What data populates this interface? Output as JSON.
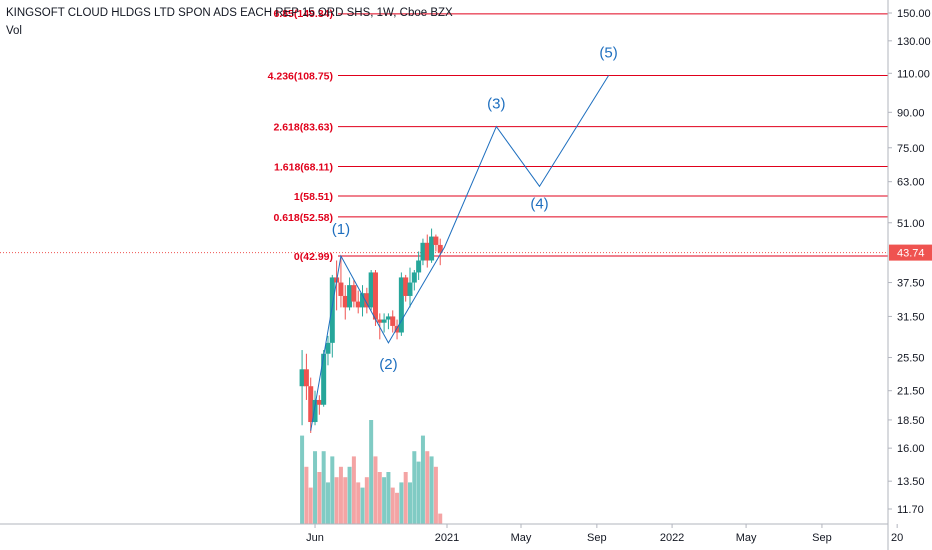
{
  "header": {
    "title": "KINGSOFT CLOUD HLDGS LTD SPON ADS EACH REP 15 ORD SHS, 1W, Cboe BZX",
    "volume_label": "Vol"
  },
  "colors": {
    "up": "#26a69a",
    "down": "#ef5350",
    "vol_up": "#80cbc4",
    "vol_down": "#f4a4a4",
    "fib": "#e0001b",
    "wave": "#1e6fbf",
    "price_tag": "#ef5350"
  },
  "chart_data": {
    "type": "candlestick",
    "y_scale": "log",
    "y_ticks": [
      "150.00",
      "130.00",
      "110.00",
      "90.00",
      "75.00",
      "63.00",
      "51.00",
      "37.50",
      "31.50",
      "25.50",
      "21.50",
      "18.50",
      "16.00",
      "13.50",
      "11.70"
    ],
    "x_ticks": [
      "Jun",
      "2021",
      "May",
      "Sep",
      "2022",
      "May",
      "Sep",
      "20"
    ],
    "x_tick_dates": [
      "2020-06-01",
      "2021-01-01",
      "2021-05-01",
      "2021-09-01",
      "2022-01-01",
      "2022-05-01",
      "2022-09-01",
      "2023-01-01"
    ],
    "current_price": "43.74",
    "fib_levels": [
      {
        "label": "4.236(108.75)",
        "price": 108.75
      },
      {
        "label": "2.618(83.63)",
        "price": 83.63
      },
      {
        "label": "1.618(68.11)",
        "price": 68.11
      },
      {
        "label": "1(58.51)",
        "price": 58.51
      },
      {
        "label": "0.618(52.58)",
        "price": 52.58
      },
      {
        "label": "0(42.99)",
        "price": 42.99
      }
    ],
    "top_line": {
      "label": "6.85(149.34)",
      "price": 149.34
    },
    "elliott_waves": [
      {
        "label": "(1)",
        "date": "2020-07-13",
        "price": 42.99
      },
      {
        "label": "(2)",
        "date": "2020-09-28",
        "price": 27.5
      },
      {
        "label": "(3)",
        "date": "2021-03-22",
        "price": 83.63
      },
      {
        "label": "(4)",
        "date": "2021-05-31",
        "price": 61.5
      },
      {
        "label": "(5)",
        "date": "2021-09-20",
        "price": 108.75
      }
    ],
    "wave_path": [
      {
        "date": "2020-05-25",
        "price": 17.5
      },
      {
        "date": "2020-07-13",
        "price": 42.99
      },
      {
        "date": "2020-09-28",
        "price": 27.5
      },
      {
        "date": "2020-12-28",
        "price": 45.0
      },
      {
        "date": "2021-03-22",
        "price": 83.63
      },
      {
        "date": "2021-05-31",
        "price": 61.5
      },
      {
        "date": "2021-09-20",
        "price": 108.75
      }
    ],
    "candles": [
      {
        "date": "2020-05-11",
        "o": 22.0,
        "h": 26.5,
        "l": 18.0,
        "c": 24.0
      },
      {
        "date": "2020-05-18",
        "o": 24.0,
        "h": 26.0,
        "l": 20.5,
        "c": 22.0
      },
      {
        "date": "2020-05-25",
        "o": 22.0,
        "h": 23.0,
        "l": 17.3,
        "c": 18.3
      },
      {
        "date": "2020-06-01",
        "o": 18.3,
        "h": 21.5,
        "l": 18.0,
        "c": 20.5
      },
      {
        "date": "2020-06-08",
        "o": 20.5,
        "h": 21.0,
        "l": 19.0,
        "c": 20.0
      },
      {
        "date": "2020-06-15",
        "o": 20.0,
        "h": 26.5,
        "l": 19.8,
        "c": 26.0
      },
      {
        "date": "2020-06-22",
        "o": 26.0,
        "h": 28.5,
        "l": 24.5,
        "c": 27.5
      },
      {
        "date": "2020-06-29",
        "o": 27.5,
        "h": 39.0,
        "l": 25.5,
        "c": 38.5
      },
      {
        "date": "2020-07-06",
        "o": 38.5,
        "h": 42.0,
        "l": 32.5,
        "c": 37.5
      },
      {
        "date": "2020-07-13",
        "o": 37.5,
        "h": 43.0,
        "l": 33.0,
        "c": 35.0
      },
      {
        "date": "2020-07-20",
        "o": 35.0,
        "h": 37.0,
        "l": 31.0,
        "c": 33.0
      },
      {
        "date": "2020-07-27",
        "o": 33.0,
        "h": 38.5,
        "l": 32.5,
        "c": 37.0
      },
      {
        "date": "2020-08-03",
        "o": 37.0,
        "h": 38.0,
        "l": 33.0,
        "c": 34.0
      },
      {
        "date": "2020-08-10",
        "o": 34.0,
        "h": 36.0,
        "l": 32.0,
        "c": 33.0
      },
      {
        "date": "2020-08-17",
        "o": 33.0,
        "h": 37.0,
        "l": 31.5,
        "c": 35.5
      },
      {
        "date": "2020-08-24",
        "o": 35.5,
        "h": 36.5,
        "l": 32.0,
        "c": 33.0
      },
      {
        "date": "2020-08-31",
        "o": 33.0,
        "h": 40.0,
        "l": 32.5,
        "c": 39.5
      },
      {
        "date": "2020-09-07",
        "o": 39.5,
        "h": 40.0,
        "l": 30.0,
        "c": 31.0
      },
      {
        "date": "2020-09-14",
        "o": 31.0,
        "h": 32.0,
        "l": 28.0,
        "c": 30.5
      },
      {
        "date": "2020-09-21",
        "o": 30.5,
        "h": 32.0,
        "l": 29.0,
        "c": 31.0
      },
      {
        "date": "2020-09-28",
        "o": 31.0,
        "h": 32.0,
        "l": 29.5,
        "c": 31.5
      },
      {
        "date": "2020-10-05",
        "o": 31.5,
        "h": 32.5,
        "l": 29.0,
        "c": 30.0
      },
      {
        "date": "2020-10-12",
        "o": 30.0,
        "h": 31.0,
        "l": 28.0,
        "c": 29.0
      },
      {
        "date": "2020-10-19",
        "o": 29.0,
        "h": 39.5,
        "l": 28.5,
        "c": 38.5
      },
      {
        "date": "2020-10-26",
        "o": 38.5,
        "h": 39.0,
        "l": 34.0,
        "c": 35.0
      },
      {
        "date": "2020-11-02",
        "o": 35.0,
        "h": 40.5,
        "l": 33.0,
        "c": 37.5
      },
      {
        "date": "2020-11-09",
        "o": 37.5,
        "h": 40.0,
        "l": 36.0,
        "c": 39.5
      },
      {
        "date": "2020-11-16",
        "o": 39.5,
        "h": 44.0,
        "l": 38.0,
        "c": 42.0
      },
      {
        "date": "2020-11-23",
        "o": 42.0,
        "h": 47.0,
        "l": 41.0,
        "c": 46.0
      },
      {
        "date": "2020-11-30",
        "o": 46.0,
        "h": 48.0,
        "l": 40.5,
        "c": 42.0
      },
      {
        "date": "2020-12-07",
        "o": 42.0,
        "h": 49.5,
        "l": 41.5,
        "c": 47.5
      },
      {
        "date": "2020-12-14",
        "o": 47.5,
        "h": 48.0,
        "l": 44.0,
        "c": 45.5
      },
      {
        "date": "2020-12-21",
        "o": 45.5,
        "h": 47.0,
        "l": 41.0,
        "c": 43.74
      }
    ],
    "volume_scale_max": 25,
    "volumes": [
      17,
      11,
      7,
      14,
      10,
      14,
      8,
      13,
      9,
      11,
      9,
      11,
      13,
      8,
      7,
      9,
      20,
      13,
      10,
      9,
      10,
      7,
      6,
      8,
      10,
      8,
      14,
      12,
      17,
      14,
      13,
      11,
      2
    ]
  }
}
